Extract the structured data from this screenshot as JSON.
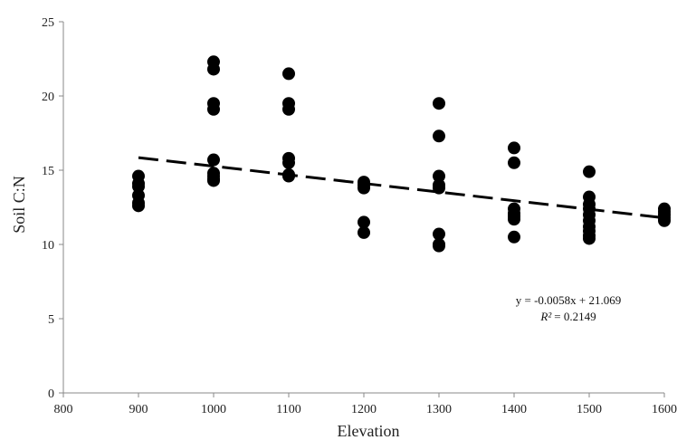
{
  "chart_data": {
    "type": "scatter",
    "title": "",
    "xlabel": "Elevation",
    "ylabel": "Soil C:N",
    "xlim": [
      800,
      1600
    ],
    "ylim": [
      0,
      25
    ],
    "xticks": [
      800,
      900,
      1000,
      1100,
      1200,
      1300,
      1400,
      1500,
      1600
    ],
    "yticks": [
      0,
      5,
      10,
      15,
      20,
      25
    ],
    "grid": false,
    "legend": "none",
    "series": [
      {
        "x": [
          900,
          900,
          900,
          900,
          900,
          900,
          1000,
          1000,
          1000,
          1000,
          1000,
          1000,
          1000,
          1000,
          1000,
          1100,
          1100,
          1100,
          1100,
          1100,
          1100,
          1100,
          1200,
          1200,
          1200,
          1200,
          1200,
          1300,
          1300,
          1300,
          1300,
          1300,
          1300,
          1300,
          1300,
          1400,
          1400,
          1400,
          1400,
          1400,
          1400,
          1400,
          1500,
          1500,
          1500,
          1500,
          1500,
          1500,
          1500,
          1500,
          1500,
          1500,
          1600,
          1600,
          1600,
          1600,
          1600
        ],
        "y": [
          14.6,
          14.1,
          13.9,
          13.3,
          12.8,
          12.6,
          22.3,
          21.8,
          19.5,
          19.1,
          15.7,
          14.8,
          14.6,
          14.4,
          14.3,
          21.5,
          19.5,
          19.1,
          15.8,
          15.5,
          14.7,
          14.6,
          14.2,
          14.0,
          13.8,
          11.5,
          10.8,
          19.5,
          17.3,
          14.6,
          14.0,
          13.8,
          10.7,
          10.0,
          9.9,
          16.5,
          15.5,
          12.4,
          12.1,
          11.9,
          11.7,
          10.5,
          14.9,
          13.2,
          12.7,
          12.4,
          12.0,
          11.6,
          11.2,
          10.9,
          10.6,
          10.4,
          12.4,
          12.2,
          12.0,
          11.8,
          11.6
        ]
      }
    ],
    "trendline": {
      "type": "linear",
      "slope": -0.0058,
      "intercept": 21.069,
      "x_range": [
        900,
        1600
      ],
      "style": "dashed"
    },
    "annotations": {
      "equation": "y = -0.0058x + 21.069",
      "r_squared_label": "R²",
      "r_squared_value": "= 0.2149"
    }
  },
  "colors": {
    "marker": "#000000",
    "trendline": "#000000",
    "axis": "#888888"
  }
}
